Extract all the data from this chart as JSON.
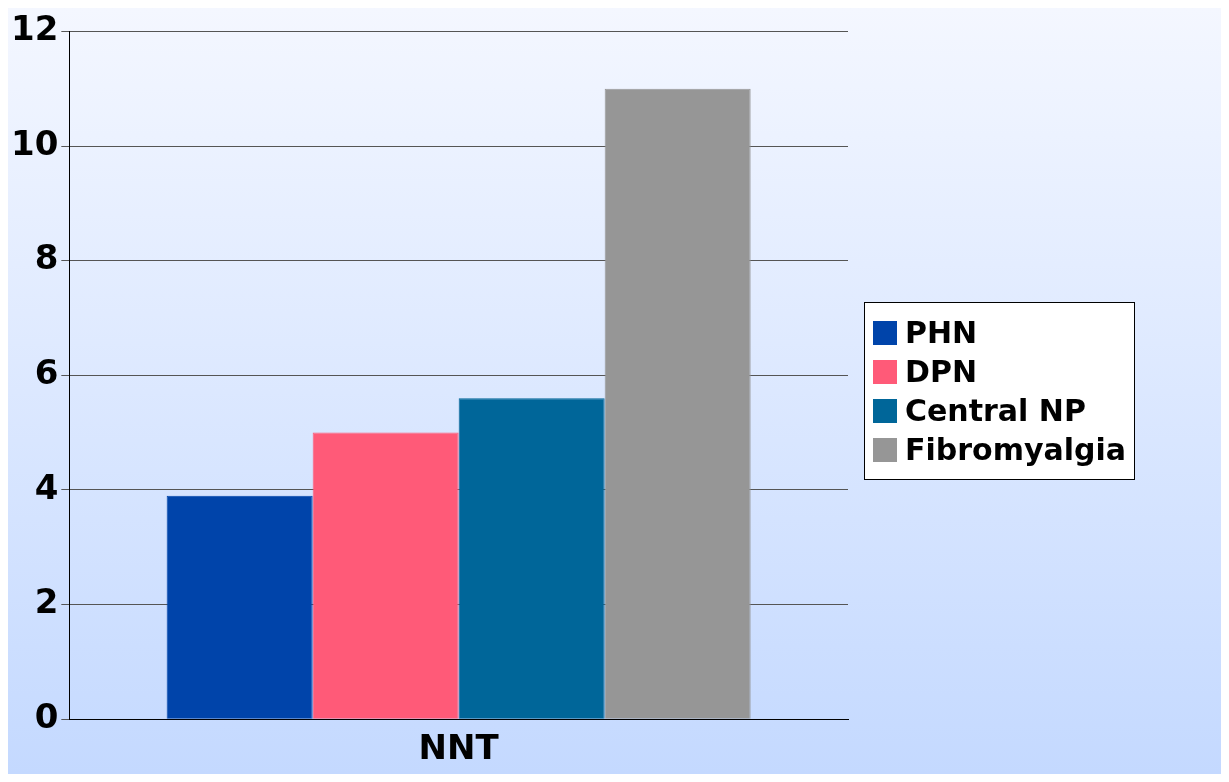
{
  "chart_data": {
    "type": "bar",
    "categories": [
      "NNT"
    ],
    "series": [
      {
        "name": "PHN",
        "color": "#0044aa",
        "values": [
          3.9
        ]
      },
      {
        "name": "DPN",
        "color": "#ff5a78",
        "values": [
          5.0
        ]
      },
      {
        "name": "Central NP",
        "color": "#006699",
        "values": [
          5.6
        ]
      },
      {
        "name": "Fibromyalgia",
        "color": "#969696",
        "values": [
          11.0
        ]
      }
    ],
    "ylim": [
      0,
      12
    ],
    "yticks": [
      0,
      2,
      4,
      6,
      8,
      10,
      12
    ],
    "grid": "y",
    "legend": "right"
  }
}
